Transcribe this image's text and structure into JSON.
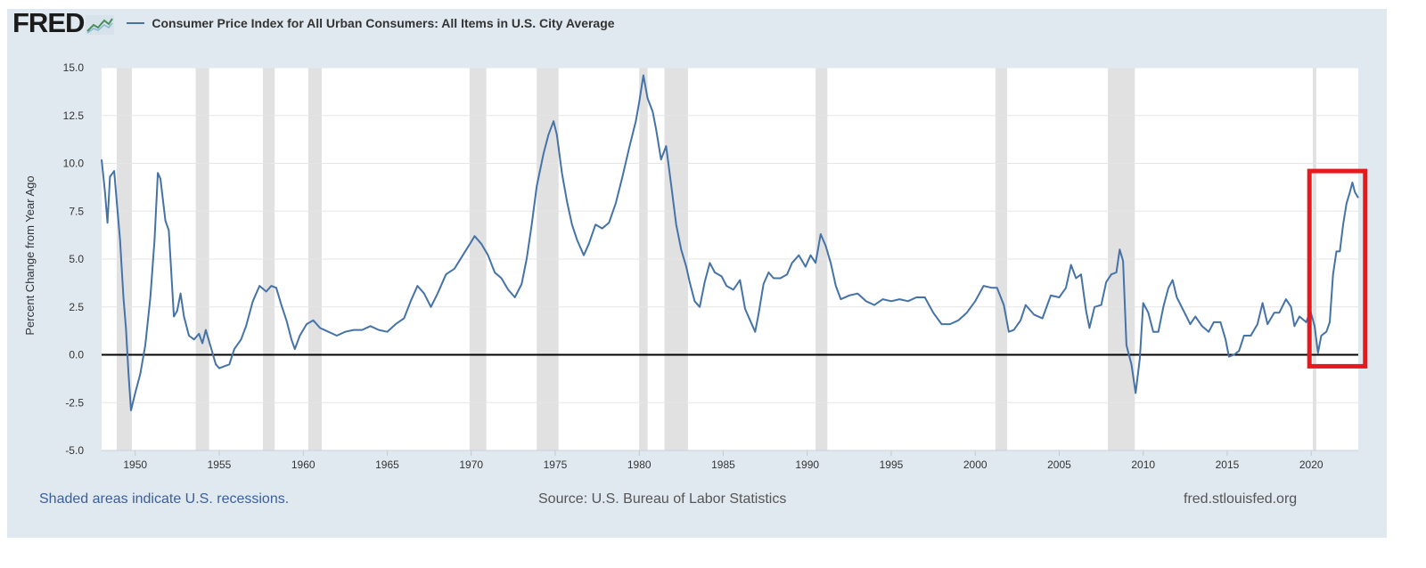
{
  "header": {
    "logo_text": "FRED",
    "logo_icon": "chart-line-icon",
    "legend_label": "Consumer Price Index for All Urban Consumers: All Items in U.S. City Average"
  },
  "footer": {
    "recession_note": "Shaded areas indicate U.S. recessions.",
    "source": "Source: U.S. Bureau of Labor Statistics",
    "site": "fred.stlouisfed.org"
  },
  "colors": {
    "series": "#4572a7",
    "plot_background": "#ffffff",
    "frame_background": "#e1e9f0",
    "recession_shade": "#e1e1e1",
    "highlight_box": "#e8191b"
  },
  "chart_data": {
    "type": "line",
    "ylabel": "Percent Change from Year Ago",
    "xlim": [
      1948.0,
      2022.8
    ],
    "ylim": [
      -5.0,
      15.0
    ],
    "y_ticks": [
      "15.0",
      "12.5",
      "10.0",
      "7.5",
      "5.0",
      "2.5",
      "0.0",
      "-2.5",
      "-5.0"
    ],
    "x_ticks": [
      "1950",
      "1955",
      "1960",
      "1965",
      "1970",
      "1975",
      "1980",
      "1985",
      "1990",
      "1995",
      "2000",
      "2005",
      "2010",
      "2015",
      "2020"
    ],
    "grid": true,
    "zero_line": true,
    "recessions": [
      [
        1948.9,
        1949.8
      ],
      [
        1953.6,
        1954.4
      ],
      [
        1957.6,
        1958.3
      ],
      [
        1960.3,
        1961.1
      ],
      [
        1969.9,
        1970.9
      ],
      [
        1973.9,
        1975.2
      ],
      [
        1980.0,
        1980.5
      ],
      [
        1981.5,
        1982.9
      ],
      [
        1990.5,
        1991.2
      ],
      [
        2001.2,
        2001.9
      ],
      [
        2007.9,
        2009.5
      ],
      [
        2020.1,
        2020.3
      ]
    ],
    "highlight_region": {
      "x": [
        2020.0,
        2023.0
      ],
      "y": [
        -0.6,
        9.6
      ]
    },
    "series": [
      {
        "name": "Consumer Price Index for All Urban Consumers: All Items in U.S. City Average",
        "points": [
          [
            1948.0,
            10.2
          ],
          [
            1948.2,
            8.5
          ],
          [
            1948.35,
            6.9
          ],
          [
            1948.5,
            9.3
          ],
          [
            1948.75,
            9.6
          ],
          [
            1948.9,
            8.0
          ],
          [
            1949.1,
            6.0
          ],
          [
            1949.3,
            3.0
          ],
          [
            1949.45,
            1.4
          ],
          [
            1949.6,
            -1.0
          ],
          [
            1949.75,
            -2.9
          ],
          [
            1950.0,
            -2.0
          ],
          [
            1950.3,
            -1.0
          ],
          [
            1950.6,
            0.5
          ],
          [
            1950.9,
            3.0
          ],
          [
            1951.15,
            6.0
          ],
          [
            1951.35,
            9.5
          ],
          [
            1951.5,
            9.2
          ],
          [
            1951.8,
            7.0
          ],
          [
            1952.0,
            6.5
          ],
          [
            1952.3,
            2.0
          ],
          [
            1952.5,
            2.3
          ],
          [
            1952.7,
            3.2
          ],
          [
            1952.9,
            2.0
          ],
          [
            1953.2,
            1.0
          ],
          [
            1953.5,
            0.8
          ],
          [
            1953.8,
            1.1
          ],
          [
            1954.0,
            0.6
          ],
          [
            1954.2,
            1.3
          ],
          [
            1954.5,
            0.4
          ],
          [
            1954.8,
            -0.5
          ],
          [
            1955.0,
            -0.7
          ],
          [
            1955.3,
            -0.6
          ],
          [
            1955.6,
            -0.5
          ],
          [
            1955.9,
            0.3
          ],
          [
            1956.3,
            0.8
          ],
          [
            1956.6,
            1.5
          ],
          [
            1957.0,
            2.8
          ],
          [
            1957.4,
            3.6
          ],
          [
            1957.8,
            3.3
          ],
          [
            1958.1,
            3.6
          ],
          [
            1958.4,
            3.5
          ],
          [
            1958.7,
            2.6
          ],
          [
            1959.0,
            1.8
          ],
          [
            1959.3,
            0.8
          ],
          [
            1959.5,
            0.3
          ],
          [
            1959.8,
            1.0
          ],
          [
            1960.2,
            1.6
          ],
          [
            1960.6,
            1.8
          ],
          [
            1961.0,
            1.4
          ],
          [
            1961.5,
            1.2
          ],
          [
            1962.0,
            1.0
          ],
          [
            1962.5,
            1.2
          ],
          [
            1963.0,
            1.3
          ],
          [
            1963.5,
            1.3
          ],
          [
            1964.0,
            1.5
          ],
          [
            1964.5,
            1.3
          ],
          [
            1965.0,
            1.2
          ],
          [
            1965.5,
            1.6
          ],
          [
            1966.0,
            1.9
          ],
          [
            1966.4,
            2.8
          ],
          [
            1966.8,
            3.6
          ],
          [
            1967.2,
            3.2
          ],
          [
            1967.6,
            2.5
          ],
          [
            1968.0,
            3.2
          ],
          [
            1968.5,
            4.2
          ],
          [
            1969.0,
            4.5
          ],
          [
            1969.5,
            5.2
          ],
          [
            1970.0,
            5.9
          ],
          [
            1970.2,
            6.2
          ],
          [
            1970.6,
            5.8
          ],
          [
            1971.0,
            5.2
          ],
          [
            1971.4,
            4.3
          ],
          [
            1971.8,
            4.0
          ],
          [
            1972.2,
            3.4
          ],
          [
            1972.6,
            3.0
          ],
          [
            1973.0,
            3.7
          ],
          [
            1973.3,
            5.0
          ],
          [
            1973.6,
            6.8
          ],
          [
            1973.9,
            8.8
          ],
          [
            1974.3,
            10.5
          ],
          [
            1974.6,
            11.5
          ],
          [
            1974.9,
            12.2
          ],
          [
            1975.1,
            11.5
          ],
          [
            1975.4,
            9.5
          ],
          [
            1975.7,
            8.0
          ],
          [
            1976.0,
            6.8
          ],
          [
            1976.3,
            6.0
          ],
          [
            1976.7,
            5.2
          ],
          [
            1977.0,
            5.8
          ],
          [
            1977.4,
            6.8
          ],
          [
            1977.8,
            6.6
          ],
          [
            1978.2,
            6.9
          ],
          [
            1978.6,
            7.9
          ],
          [
            1979.0,
            9.3
          ],
          [
            1979.4,
            10.8
          ],
          [
            1979.8,
            12.2
          ],
          [
            1980.0,
            13.2
          ],
          [
            1980.25,
            14.6
          ],
          [
            1980.5,
            13.4
          ],
          [
            1980.8,
            12.7
          ],
          [
            1981.0,
            11.8
          ],
          [
            1981.3,
            10.2
          ],
          [
            1981.6,
            10.9
          ],
          [
            1981.9,
            8.9
          ],
          [
            1982.2,
            6.8
          ],
          [
            1982.5,
            5.5
          ],
          [
            1982.8,
            4.6
          ],
          [
            1983.0,
            3.8
          ],
          [
            1983.3,
            2.8
          ],
          [
            1983.6,
            2.5
          ],
          [
            1983.9,
            3.8
          ],
          [
            1984.2,
            4.8
          ],
          [
            1984.5,
            4.3
          ],
          [
            1984.9,
            4.1
          ],
          [
            1985.2,
            3.6
          ],
          [
            1985.6,
            3.4
          ],
          [
            1986.0,
            3.9
          ],
          [
            1986.3,
            2.4
          ],
          [
            1986.6,
            1.8
          ],
          [
            1986.9,
            1.2
          ],
          [
            1987.1,
            2.1
          ],
          [
            1987.4,
            3.7
          ],
          [
            1987.7,
            4.3
          ],
          [
            1988.0,
            4.0
          ],
          [
            1988.4,
            4.0
          ],
          [
            1988.8,
            4.2
          ],
          [
            1989.1,
            4.8
          ],
          [
            1989.5,
            5.2
          ],
          [
            1989.9,
            4.6
          ],
          [
            1990.2,
            5.2
          ],
          [
            1990.5,
            4.8
          ],
          [
            1990.8,
            6.3
          ],
          [
            1991.1,
            5.7
          ],
          [
            1991.4,
            4.8
          ],
          [
            1991.7,
            3.6
          ],
          [
            1992.0,
            2.9
          ],
          [
            1992.5,
            3.1
          ],
          [
            1993.0,
            3.2
          ],
          [
            1993.5,
            2.8
          ],
          [
            1994.0,
            2.6
          ],
          [
            1994.5,
            2.9
          ],
          [
            1995.0,
            2.8
          ],
          [
            1995.5,
            2.9
          ],
          [
            1996.0,
            2.8
          ],
          [
            1996.5,
            3.0
          ],
          [
            1997.0,
            3.0
          ],
          [
            1997.5,
            2.2
          ],
          [
            1998.0,
            1.6
          ],
          [
            1998.5,
            1.6
          ],
          [
            1999.0,
            1.8
          ],
          [
            1999.5,
            2.2
          ],
          [
            2000.0,
            2.8
          ],
          [
            2000.5,
            3.6
          ],
          [
            2001.0,
            3.5
          ],
          [
            2001.3,
            3.5
          ],
          [
            2001.7,
            2.6
          ],
          [
            2002.0,
            1.2
          ],
          [
            2002.3,
            1.3
          ],
          [
            2002.7,
            1.8
          ],
          [
            2003.0,
            2.6
          ],
          [
            2003.5,
            2.1
          ],
          [
            2004.0,
            1.9
          ],
          [
            2004.5,
            3.1
          ],
          [
            2005.0,
            3.0
          ],
          [
            2005.4,
            3.5
          ],
          [
            2005.7,
            4.7
          ],
          [
            2006.0,
            4.0
          ],
          [
            2006.3,
            4.2
          ],
          [
            2006.6,
            2.3
          ],
          [
            2006.8,
            1.4
          ],
          [
            2007.1,
            2.5
          ],
          [
            2007.5,
            2.6
          ],
          [
            2007.8,
            3.8
          ],
          [
            2008.1,
            4.2
          ],
          [
            2008.4,
            4.3
          ],
          [
            2008.6,
            5.5
          ],
          [
            2008.8,
            4.9
          ],
          [
            2009.0,
            0.5
          ],
          [
            2009.3,
            -0.5
          ],
          [
            2009.55,
            -2.0
          ],
          [
            2009.8,
            -0.2
          ],
          [
            2010.0,
            2.7
          ],
          [
            2010.3,
            2.2
          ],
          [
            2010.6,
            1.2
          ],
          [
            2010.9,
            1.2
          ],
          [
            2011.2,
            2.5
          ],
          [
            2011.5,
            3.5
          ],
          [
            2011.75,
            3.9
          ],
          [
            2012.0,
            3.0
          ],
          [
            2012.4,
            2.3
          ],
          [
            2012.8,
            1.6
          ],
          [
            2013.1,
            2.0
          ],
          [
            2013.5,
            1.5
          ],
          [
            2013.9,
            1.2
          ],
          [
            2014.2,
            1.7
          ],
          [
            2014.6,
            1.7
          ],
          [
            2014.9,
            0.8
          ],
          [
            2015.1,
            -0.1
          ],
          [
            2015.4,
            0.0
          ],
          [
            2015.7,
            0.2
          ],
          [
            2016.0,
            1.0
          ],
          [
            2016.4,
            1.0
          ],
          [
            2016.8,
            1.6
          ],
          [
            2017.1,
            2.7
          ],
          [
            2017.4,
            1.6
          ],
          [
            2017.8,
            2.2
          ],
          [
            2018.1,
            2.2
          ],
          [
            2018.5,
            2.9
          ],
          [
            2018.8,
            2.5
          ],
          [
            2019.0,
            1.5
          ],
          [
            2019.3,
            2.0
          ],
          [
            2019.7,
            1.7
          ],
          [
            2019.95,
            2.3
          ],
          [
            2020.2,
            1.5
          ],
          [
            2020.4,
            0.1
          ],
          [
            2020.6,
            1.0
          ],
          [
            2020.9,
            1.2
          ],
          [
            2021.1,
            1.7
          ],
          [
            2021.3,
            4.2
          ],
          [
            2021.5,
            5.4
          ],
          [
            2021.7,
            5.4
          ],
          [
            2021.9,
            6.8
          ],
          [
            2022.1,
            7.9
          ],
          [
            2022.3,
            8.5
          ],
          [
            2022.45,
            9.0
          ],
          [
            2022.6,
            8.5
          ],
          [
            2022.8,
            8.2
          ]
        ]
      }
    ]
  }
}
